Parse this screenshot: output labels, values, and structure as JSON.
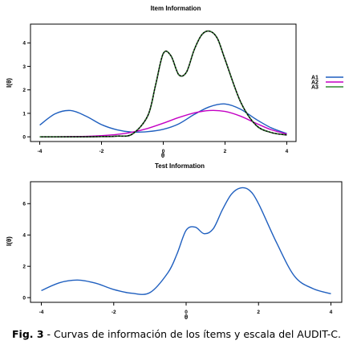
{
  "caption": {
    "label": "Fig. 3",
    "text": " - Curvas de información de los ítems y escala del AUDIT-C."
  },
  "chart_data": [
    {
      "type": "line",
      "title": "Item Information",
      "xlabel": "θ",
      "ylabel": "I(θ)",
      "xlim": [
        -4.3,
        4.3
      ],
      "ylim": [
        -0.2,
        4.8
      ],
      "xticks": [
        -4,
        -2,
        0,
        2,
        4
      ],
      "yticks": [
        0,
        1,
        2,
        3,
        4
      ],
      "grid": false,
      "legend": "right",
      "series": [
        {
          "name": "A1",
          "color": "#1f5fbf",
          "x": [
            -4,
            -3.5,
            -3,
            -2.5,
            -2,
            -1.5,
            -1,
            -0.5,
            0,
            0.5,
            1,
            1.5,
            2,
            2.5,
            3,
            3.5,
            4
          ],
          "y": [
            0.5,
            0.98,
            1.12,
            0.88,
            0.52,
            0.3,
            0.2,
            0.22,
            0.32,
            0.55,
            0.95,
            1.28,
            1.4,
            1.18,
            0.75,
            0.38,
            0.14
          ]
        },
        {
          "name": "A2",
          "color": "#c400c4",
          "x": [
            -4,
            -3.5,
            -3,
            -2.5,
            -2,
            -1.5,
            -1,
            -0.5,
            0,
            0.5,
            1,
            1.5,
            2,
            2.5,
            3,
            3.5,
            4
          ],
          "y": [
            0,
            0,
            0.01,
            0.02,
            0.05,
            0.1,
            0.2,
            0.36,
            0.58,
            0.82,
            1.02,
            1.12,
            1.08,
            0.88,
            0.58,
            0.3,
            0.12
          ]
        },
        {
          "name": "A3",
          "color": "#2e8b2e",
          "x": [
            -4,
            -3.5,
            -3,
            -2.5,
            -2,
            -1.5,
            -1,
            -0.5,
            -0.25,
            0,
            0.25,
            0.5,
            0.75,
            1,
            1.25,
            1.5,
            1.75,
            2,
            2.5,
            3,
            3.5,
            4
          ],
          "y": [
            0,
            0,
            0,
            0,
            0.01,
            0.03,
            0.12,
            0.9,
            2.2,
            3.55,
            3.45,
            2.65,
            2.75,
            3.7,
            4.35,
            4.5,
            4.2,
            3.3,
            1.5,
            0.5,
            0.18,
            0.08
          ]
        }
      ]
    },
    {
      "type": "line",
      "title": "Test Information",
      "xlabel": "θ",
      "ylabel": "I(θ)",
      "xlim": [
        -4.3,
        4.3
      ],
      "ylim": [
        -0.3,
        7.4
      ],
      "xticks": [
        -4,
        -2,
        0,
        2,
        4
      ],
      "yticks": [
        0,
        2,
        4,
        6
      ],
      "grid": false,
      "series": [
        {
          "color": "#1f5fbf",
          "x": [
            -4,
            -3.5,
            -3,
            -2.5,
            -2,
            -1.5,
            -1,
            -0.5,
            -0.25,
            0,
            0.25,
            0.5,
            0.75,
            1,
            1.25,
            1.5,
            1.75,
            2,
            2.5,
            3,
            3.5,
            4
          ],
          "y": [
            0.45,
            0.95,
            1.12,
            0.92,
            0.52,
            0.28,
            0.32,
            1.6,
            2.8,
            4.3,
            4.5,
            4.08,
            4.4,
            5.6,
            6.6,
            7.0,
            6.85,
            6.0,
            3.5,
            1.35,
            0.58,
            0.25
          ]
        }
      ]
    }
  ]
}
